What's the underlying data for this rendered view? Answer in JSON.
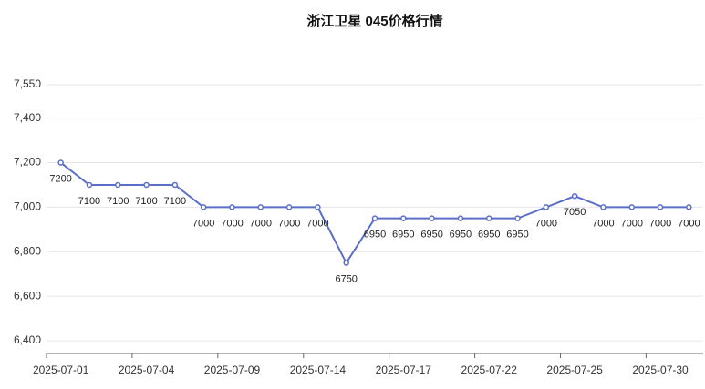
{
  "chart_data": {
    "type": "line",
    "title": "浙江卫星 045价格行情",
    "categories": [
      "2025-07-01",
      null,
      null,
      "2025-07-04",
      null,
      null,
      "2025-07-09",
      null,
      null,
      "2025-07-14",
      null,
      null,
      "2025-07-17",
      null,
      null,
      "2025-07-22",
      null,
      null,
      "2025-07-25",
      null,
      null,
      "2025-07-30",
      null
    ],
    "values": [
      7200,
      7100,
      7100,
      7100,
      7100,
      7000,
      7000,
      7000,
      7000,
      7000,
      6750,
      6950,
      6950,
      6950,
      6950,
      6950,
      6950,
      7000,
      7050,
      7000,
      7000,
      7000,
      7000
    ],
    "color": "#5b6fc8",
    "ylim": [
      6343,
      7550
    ],
    "yticks": [
      {
        "value": 6400,
        "label": "6,400"
      },
      {
        "value": 6600,
        "label": "6,600"
      },
      {
        "value": 6800,
        "label": "6,800"
      },
      {
        "value": 7000,
        "label": "7,000"
      },
      {
        "value": 7200,
        "label": "7,200"
      },
      {
        "value": 7400,
        "label": "7,400"
      },
      {
        "value": 7550,
        "label": "7,550"
      }
    ],
    "grid": true
  }
}
